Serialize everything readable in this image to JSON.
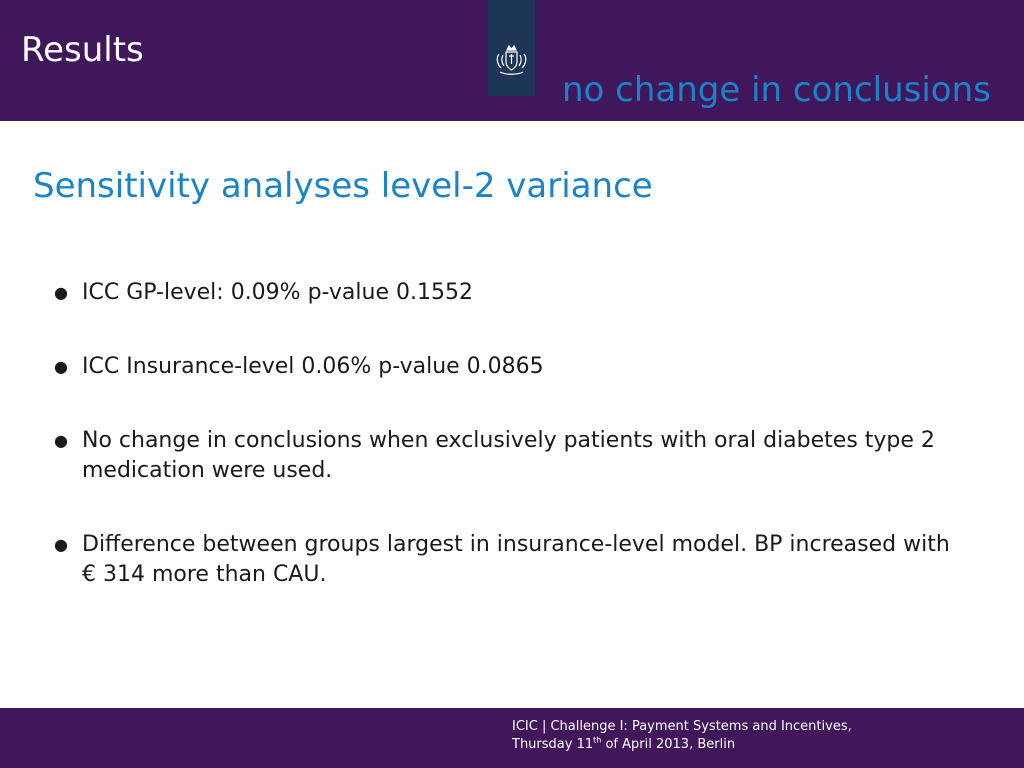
{
  "header": {
    "section_title": "Results",
    "subtitle": "no change in conclusions",
    "emblem_icon": "royal-coat-of-arms-icon"
  },
  "main": {
    "heading": "Sensitivity analyses level-2 variance",
    "bullets": [
      "ICC GP-level:  0.09% p-value 0.1552",
      "ICC Insurance-level 0.06% p-value 0.0865",
      "No change in conclusions when exclusively patients with oral diabetes type 2 medication were used.",
      "Difference between groups largest in insurance-level model. BP increased with € 314 more than CAU."
    ]
  },
  "footer": {
    "line1": "ICIC | Challenge I: Payment Systems and Incentives,",
    "line2_pre": "Thursday 11",
    "line2_sup": "th",
    "line2_post": " of April 2013, Berlin"
  },
  "colors": {
    "header_bg": "#41175c",
    "accent_blue": "#1a84c9",
    "emblem_bg": "#1d3557"
  }
}
